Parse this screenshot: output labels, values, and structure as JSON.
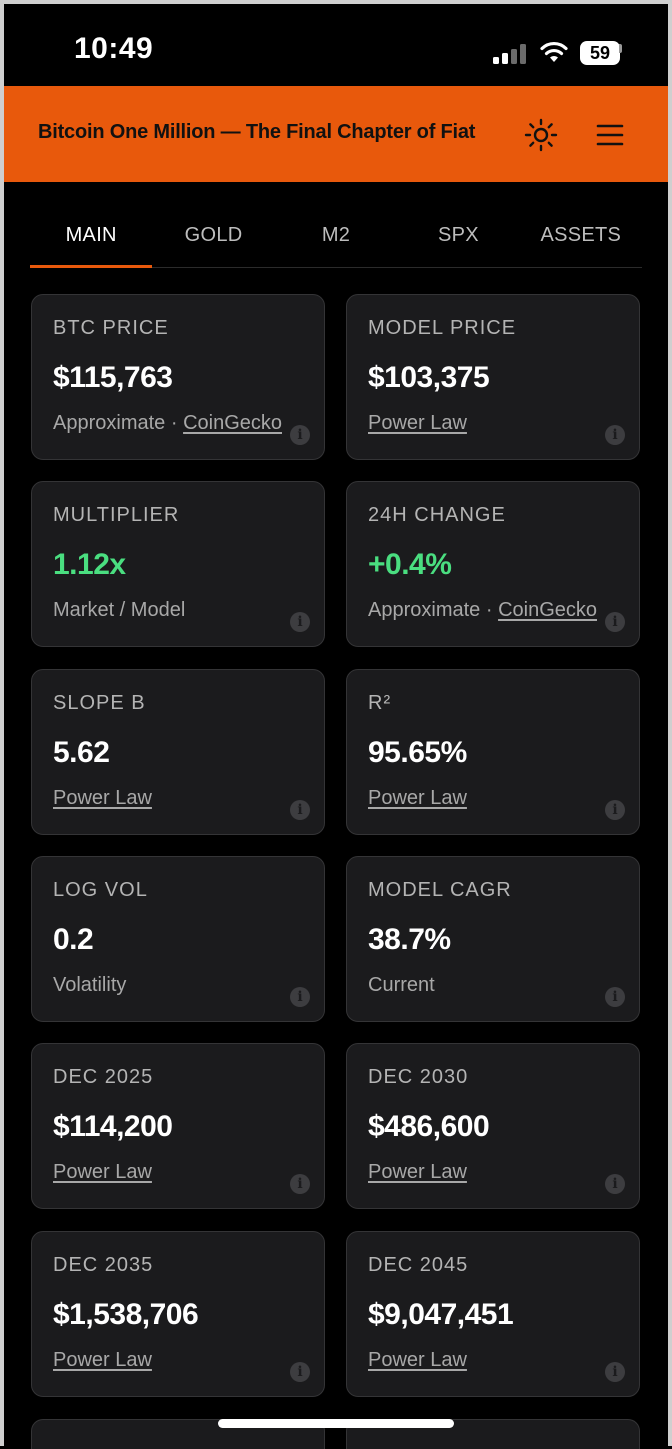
{
  "status_bar": {
    "time": "10:49",
    "battery": "59"
  },
  "header": {
    "title": "Bitcoin One Million — The Final Chapter of Fiat"
  },
  "tabs": [
    {
      "label": "MAIN",
      "active": true
    },
    {
      "label": "GOLD",
      "active": false
    },
    {
      "label": "M2",
      "active": false
    },
    {
      "label": "SPX",
      "active": false
    },
    {
      "label": "ASSETS",
      "active": false
    }
  ],
  "cards": [
    {
      "label": "BTC PRICE",
      "value": "$115,763",
      "sub_prefix": "Approximate · ",
      "sub_link": "CoinGecko"
    },
    {
      "label": "MODEL PRICE",
      "value": "$103,375",
      "sub_prefix": "",
      "sub_link": "Power Law"
    },
    {
      "label": "MULTIPLIER",
      "value": "1.12x",
      "positive": true,
      "sub_prefix": "Market / Model",
      "sub_link": ""
    },
    {
      "label": "24H CHANGE",
      "value": "+0.4%",
      "positive": true,
      "sub_prefix": "Approximate · ",
      "sub_link": "CoinGecko"
    },
    {
      "label": "SLOPE B",
      "value": "5.62",
      "sub_prefix": "",
      "sub_link": "Power Law"
    },
    {
      "label": "R²",
      "value": "95.65%",
      "sub_prefix": "",
      "sub_link": "Power Law"
    },
    {
      "label": "LOG VOL",
      "value": "0.2",
      "sub_prefix": "Volatility",
      "sub_link": ""
    },
    {
      "label": "MODEL CAGR",
      "value": "38.7%",
      "sub_prefix": "Current",
      "sub_link": ""
    },
    {
      "label": "DEC 2025",
      "value": "$114,200",
      "sub_prefix": "",
      "sub_link": "Power Law"
    },
    {
      "label": "DEC 2030",
      "value": "$486,600",
      "sub_prefix": "",
      "sub_link": "Power Law"
    },
    {
      "label": "DEC 2035",
      "value": "$1,538,706",
      "sub_prefix": "",
      "sub_link": "Power Law"
    },
    {
      "label": "DEC 2045",
      "value": "$9,047,451",
      "sub_prefix": "",
      "sub_link": "Power Law"
    }
  ],
  "colors": {
    "accent": "#e8590c",
    "positive": "#4ade80",
    "card_bg": "#1b1b1d"
  }
}
